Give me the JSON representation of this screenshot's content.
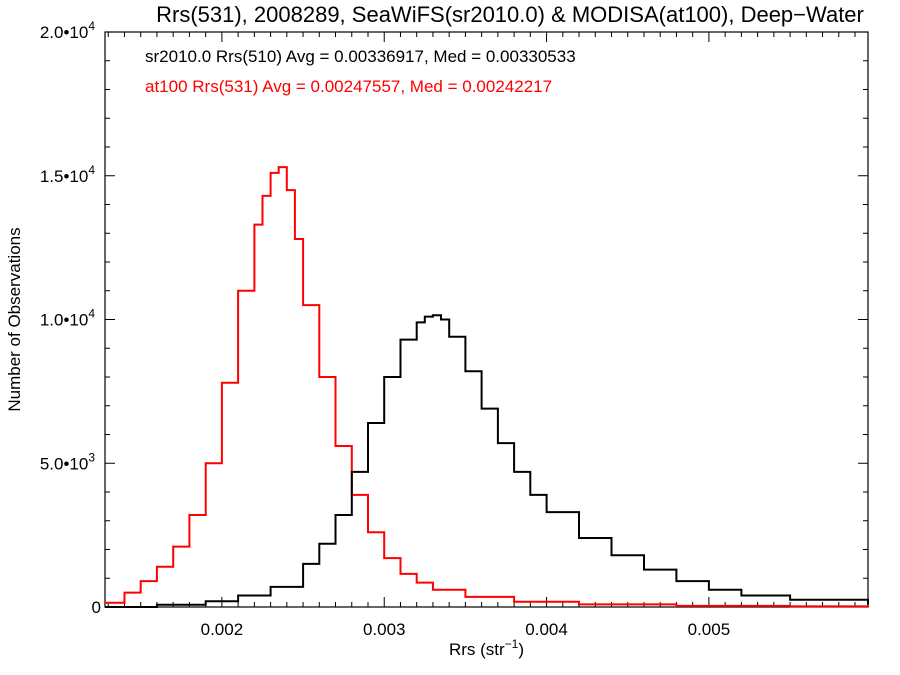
{
  "chart_data": {
    "type": "line",
    "step": true,
    "title": "Rrs(531), 2008289, SeaWiFS(sr2010.0) & MODISA(at100), Deep−Water",
    "xlabel": "Rrs (str",
    "xlabel_sup": "−1",
    "xlabel_end": ")",
    "ylabel": "Number of Observations",
    "xlim": [
      0.00128,
      0.00598
    ],
    "ylim": [
      0,
      20000
    ],
    "x_ticks": [
      {
        "value": 0.002,
        "label": "0.002"
      },
      {
        "value": 0.003,
        "label": "0.003"
      },
      {
        "value": 0.004,
        "label": "0.004"
      },
      {
        "value": 0.005,
        "label": "0.005"
      }
    ],
    "y_ticks": [
      {
        "value": 0,
        "mant": "0",
        "exp": ""
      },
      {
        "value": 5000,
        "mant": "5.0•10",
        "exp": "3"
      },
      {
        "value": 10000,
        "mant": "1.0•10",
        "exp": "4"
      },
      {
        "value": 15000,
        "mant": "1.5•10",
        "exp": "4"
      },
      {
        "value": 20000,
        "mant": "2.0•10",
        "exp": "4"
      }
    ],
    "annotations": [
      {
        "text": "sr2010.0 Rrs(510) Avg = 0.00336917, Med = 0.00330533",
        "color": "#000000"
      },
      {
        "text": "at100 Rrs(531) Avg = 0.00247557, Med = 0.00242217",
        "color": "#ff0000"
      }
    ],
    "series": [
      {
        "color": "#ff0000",
        "x": [
          0.00128,
          0.0014,
          0.0015,
          0.0016,
          0.0017,
          0.0018,
          0.0019,
          0.002,
          0.0021,
          0.0022,
          0.00225,
          0.0023,
          0.00235,
          0.0024,
          0.00245,
          0.0025,
          0.0026,
          0.0027,
          0.0028,
          0.0029,
          0.003,
          0.0031,
          0.0032,
          0.0033,
          0.0035,
          0.0038,
          0.0042,
          0.0048,
          0.0055,
          0.00598
        ],
        "y": [
          150,
          500,
          900,
          1400,
          2100,
          3200,
          5000,
          7800,
          11000,
          13300,
          14300,
          15100,
          15300,
          14500,
          12800,
          10500,
          8000,
          5600,
          3900,
          2600,
          1700,
          1150,
          850,
          600,
          350,
          180,
          90,
          40,
          20,
          10
        ]
      },
      {
        "color": "#000000",
        "x": [
          0.00128,
          0.0016,
          0.0019,
          0.0021,
          0.0023,
          0.0025,
          0.0026,
          0.0027,
          0.0028,
          0.0029,
          0.003,
          0.0031,
          0.0032,
          0.00325,
          0.0033,
          0.00335,
          0.0034,
          0.0035,
          0.0036,
          0.0037,
          0.0038,
          0.0039,
          0.004,
          0.0042,
          0.0044,
          0.0046,
          0.0048,
          0.005,
          0.0052,
          0.0055,
          0.00598
        ],
        "y": [
          0,
          80,
          200,
          400,
          700,
          1500,
          2200,
          3200,
          4700,
          6400,
          8000,
          9300,
          9900,
          10100,
          10150,
          10000,
          9400,
          8200,
          6900,
          5700,
          4700,
          3900,
          3300,
          2400,
          1800,
          1300,
          900,
          600,
          400,
          250,
          80
        ]
      }
    ]
  }
}
